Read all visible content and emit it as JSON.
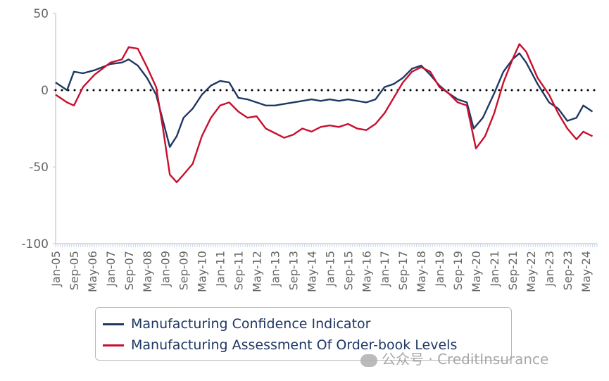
{
  "chart_data": {
    "type": "line",
    "x_start": "Jan-05",
    "x_end": "Oct-24",
    "x_tick_labels": [
      "Jan-05",
      "Sep-05",
      "May-06",
      "Jan-07",
      "Sep-07",
      "May-08",
      "Jan-09",
      "Sep-09",
      "May-10",
      "Jan-11",
      "Sep-11",
      "May-12",
      "Jan-13",
      "Sep-13",
      "May-14",
      "Jan-15",
      "Sep-15",
      "May-16",
      "Jan-17",
      "Sep-17",
      "May-18",
      "Jan-19",
      "Sep-19",
      "May-20",
      "Jan-21",
      "Sep-21",
      "May-22",
      "Jan-23",
      "Sep-23",
      "May-24"
    ],
    "ylim": [
      -100,
      50
    ],
    "y_ticks": [
      50,
      0,
      -50,
      -100
    ],
    "y_tick_labels": [
      "50",
      "0",
      "-50",
      "-100"
    ],
    "zero_line": "dotted",
    "grid": false,
    "legend_position": "bottom",
    "series": [
      {
        "name": "Manufacturing Confidence Indicator",
        "color": "#1f3864",
        "points": [
          [
            "Jan-05",
            5
          ],
          [
            "Jun-05",
            0
          ],
          [
            "Sep-05",
            12
          ],
          [
            "Jan-06",
            11
          ],
          [
            "Jun-06",
            13
          ],
          [
            "Jan-07",
            17
          ],
          [
            "Jun-07",
            18
          ],
          [
            "Sep-07",
            20
          ],
          [
            "Jan-08",
            16
          ],
          [
            "May-08",
            8
          ],
          [
            "Sep-08",
            -3
          ],
          [
            "Dec-08",
            -20
          ],
          [
            "Mar-09",
            -37
          ],
          [
            "Jun-09",
            -30
          ],
          [
            "Sep-09",
            -18
          ],
          [
            "Jan-10",
            -12
          ],
          [
            "May-10",
            -3
          ],
          [
            "Sep-10",
            3
          ],
          [
            "Jan-11",
            6
          ],
          [
            "May-11",
            5
          ],
          [
            "Sep-11",
            -5
          ],
          [
            "Jan-12",
            -6
          ],
          [
            "May-12",
            -8
          ],
          [
            "Sep-12",
            -10
          ],
          [
            "Jan-13",
            -10
          ],
          [
            "May-13",
            -9
          ],
          [
            "Sep-13",
            -8
          ],
          [
            "Jan-14",
            -7
          ],
          [
            "May-14",
            -6
          ],
          [
            "Sep-14",
            -7
          ],
          [
            "Jan-15",
            -6
          ],
          [
            "May-15",
            -7
          ],
          [
            "Sep-15",
            -6
          ],
          [
            "Jan-16",
            -7
          ],
          [
            "May-16",
            -8
          ],
          [
            "Sep-16",
            -6
          ],
          [
            "Jan-17",
            2
          ],
          [
            "May-17",
            4
          ],
          [
            "Sep-17",
            8
          ],
          [
            "Jan-18",
            14
          ],
          [
            "May-18",
            16
          ],
          [
            "Sep-18",
            10
          ],
          [
            "Jan-19",
            3
          ],
          [
            "May-19",
            -2
          ],
          [
            "Sep-19",
            -6
          ],
          [
            "Jan-20",
            -8
          ],
          [
            "Apr-20",
            -25
          ],
          [
            "Aug-20",
            -18
          ],
          [
            "Jan-21",
            -2
          ],
          [
            "May-21",
            12
          ],
          [
            "Sep-21",
            20
          ],
          [
            "Dec-21",
            24
          ],
          [
            "Mar-22",
            18
          ],
          [
            "Aug-22",
            4
          ],
          [
            "Jan-23",
            -8
          ],
          [
            "May-23",
            -12
          ],
          [
            "Sep-23",
            -20
          ],
          [
            "Jan-24",
            -18
          ],
          [
            "Apr-24",
            -10
          ],
          [
            "Aug-24",
            -14
          ]
        ]
      },
      {
        "name": "Manufacturing Assessment Of Order-book Levels",
        "color": "#c8102e",
        "points": [
          [
            "Jan-05",
            -3
          ],
          [
            "Jun-05",
            -8
          ],
          [
            "Sep-05",
            -10
          ],
          [
            "Jan-06",
            2
          ],
          [
            "Jun-06",
            10
          ],
          [
            "Jan-07",
            18
          ],
          [
            "Jun-07",
            20
          ],
          [
            "Sep-07",
            28
          ],
          [
            "Jan-08",
            27
          ],
          [
            "May-08",
            15
          ],
          [
            "Sep-08",
            2
          ],
          [
            "Dec-08",
            -25
          ],
          [
            "Mar-09",
            -55
          ],
          [
            "Jun-09",
            -60
          ],
          [
            "Sep-09",
            -55
          ],
          [
            "Jan-10",
            -48
          ],
          [
            "May-10",
            -30
          ],
          [
            "Sep-10",
            -18
          ],
          [
            "Jan-11",
            -10
          ],
          [
            "May-11",
            -8
          ],
          [
            "Sep-11",
            -14
          ],
          [
            "Jan-12",
            -18
          ],
          [
            "May-12",
            -17
          ],
          [
            "Sep-12",
            -25
          ],
          [
            "Jan-13",
            -28
          ],
          [
            "May-13",
            -31
          ],
          [
            "Sep-13",
            -29
          ],
          [
            "Jan-14",
            -25
          ],
          [
            "May-14",
            -27
          ],
          [
            "Sep-14",
            -24
          ],
          [
            "Jan-15",
            -23
          ],
          [
            "May-15",
            -24
          ],
          [
            "Sep-15",
            -22
          ],
          [
            "Jan-16",
            -25
          ],
          [
            "May-16",
            -26
          ],
          [
            "Sep-16",
            -22
          ],
          [
            "Jan-17",
            -15
          ],
          [
            "May-17",
            -5
          ],
          [
            "Sep-17",
            5
          ],
          [
            "Jan-18",
            12
          ],
          [
            "May-18",
            15
          ],
          [
            "Sep-18",
            12
          ],
          [
            "Jan-19",
            2
          ],
          [
            "May-19",
            -2
          ],
          [
            "Sep-19",
            -8
          ],
          [
            "Jan-20",
            -10
          ],
          [
            "May-20",
            -38
          ],
          [
            "Sep-20",
            -30
          ],
          [
            "Jan-21",
            -15
          ],
          [
            "May-21",
            5
          ],
          [
            "Sep-21",
            20
          ],
          [
            "Dec-21",
            30
          ],
          [
            "Mar-22",
            25
          ],
          [
            "Aug-22",
            8
          ],
          [
            "Jan-23",
            -3
          ],
          [
            "May-23",
            -15
          ],
          [
            "Sep-23",
            -25
          ],
          [
            "Jan-24",
            -32
          ],
          [
            "Apr-24",
            -27
          ],
          [
            "Aug-24",
            -30
          ]
        ]
      }
    ]
  },
  "legend": {
    "items": [
      {
        "label": "Manufacturing Confidence Indicator",
        "color": "#1f3864"
      },
      {
        "label": "Manufacturing Assessment Of Order-book Levels",
        "color": "#c8102e"
      }
    ]
  },
  "watermark": {
    "text": "公众号 · CreditInsurance"
  }
}
